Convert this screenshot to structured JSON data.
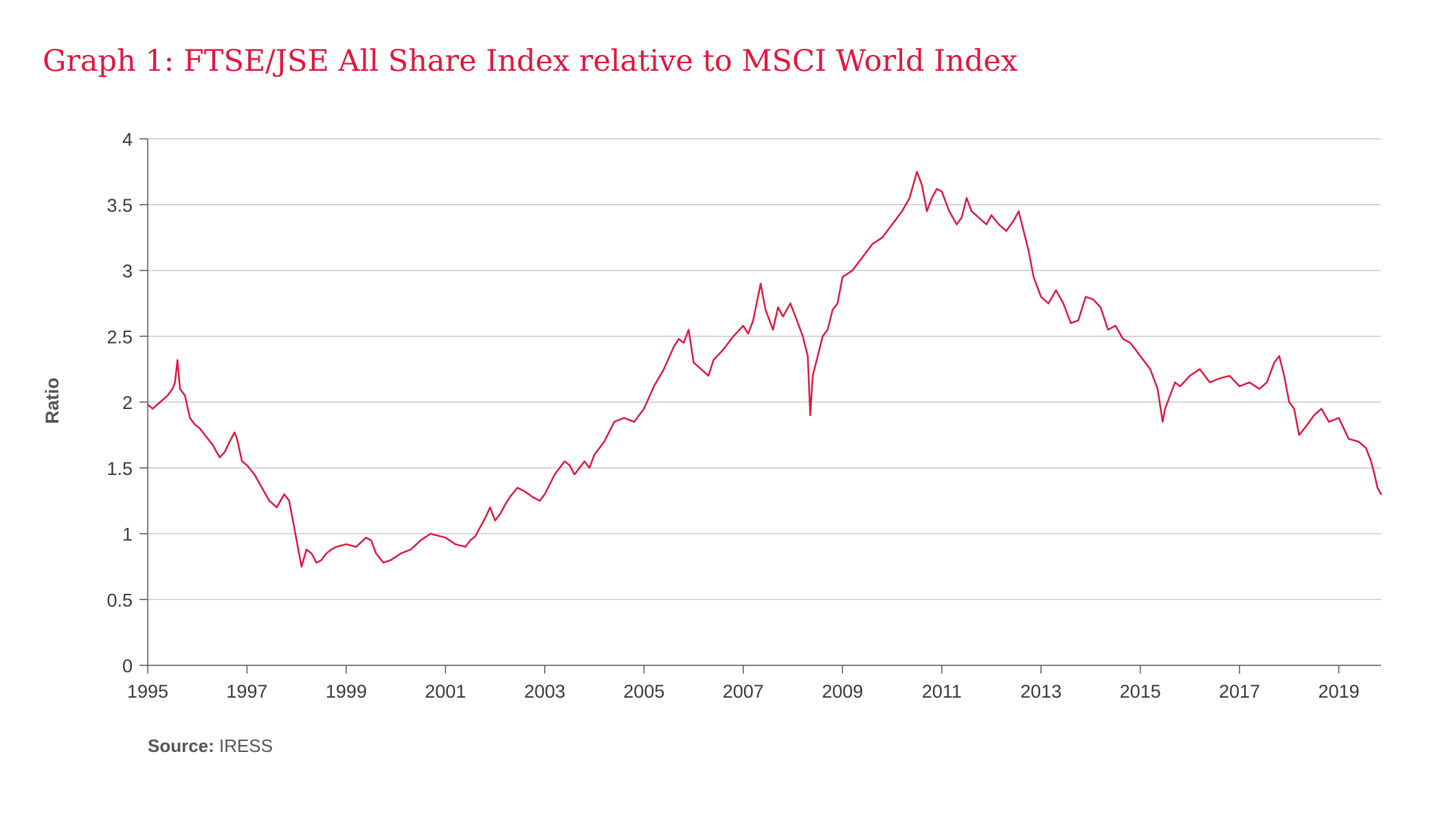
{
  "title": "Graph 1: FTSE/JSE All Share Index relative to MSCI World Index",
  "source": {
    "label": "Source:",
    "value": "IRESS"
  },
  "colors": {
    "title": "#e0173d",
    "series": "#e0173d",
    "grid": "#c8c8c8",
    "axis": "#555555",
    "text": "#3a3a3a"
  },
  "chart_data": {
    "type": "line",
    "title": "Graph 1: FTSE/JSE All Share Index relative to MSCI World Index",
    "xlabel": "",
    "ylabel": "Ratio",
    "xlim": [
      1995.0,
      2019.85
    ],
    "ylim": [
      0,
      4
    ],
    "grid": true,
    "legend": "none",
    "x_ticks": [
      "1995",
      "1997",
      "1999",
      "2001",
      "2003",
      "2005",
      "2007",
      "2009",
      "2011",
      "2013",
      "2015",
      "2017",
      "2019"
    ],
    "y_ticks": [
      "0",
      "0.5",
      "1",
      "1.5",
      "2",
      "2.5",
      "3",
      "3.5",
      "4"
    ],
    "series": [
      {
        "x": [
          1995.0,
          1995.1,
          1995.25,
          1995.4,
          1995.5,
          1995.55,
          1995.6,
          1995.65,
          1995.75,
          1995.85,
          1995.95,
          1996.05,
          1996.15,
          1996.3,
          1996.45,
          1996.55,
          1996.65,
          1996.75,
          1996.8,
          1996.9,
          1997.0,
          1997.15,
          1997.3,
          1997.45,
          1997.6,
          1997.75,
          1997.85,
          1998.0,
          1998.1,
          1998.2,
          1998.3,
          1998.4,
          1998.5,
          1998.6,
          1998.7,
          1998.8,
          1999.0,
          1999.2,
          1999.4,
          1999.5,
          1999.6,
          1999.75,
          1999.9,
          2000.1,
          2000.3,
          2000.5,
          2000.7,
          2000.9,
          2001.0,
          2001.2,
          2001.4,
          2001.5,
          2001.6,
          2001.8,
          2001.9,
          2002.0,
          2002.1,
          2002.2,
          2002.3,
          2002.45,
          2002.6,
          2002.75,
          2002.9,
          2003.0,
          2003.2,
          2003.4,
          2003.5,
          2003.6,
          2003.8,
          2003.9,
          2004.0,
          2004.2,
          2004.4,
          2004.6,
          2004.8,
          2005.0,
          2005.2,
          2005.4,
          2005.6,
          2005.7,
          2005.8,
          2005.9,
          2006.0,
          2006.15,
          2006.3,
          2006.4,
          2006.6,
          2006.8,
          2007.0,
          2007.1,
          2007.2,
          2007.35,
          2007.45,
          2007.6,
          2007.7,
          2007.8,
          2007.95,
          2008.1,
          2008.2,
          2008.3,
          2008.35,
          2008.4,
          2008.5,
          2008.6,
          2008.7,
          2008.8,
          2008.9,
          2009.0,
          2009.2,
          2009.4,
          2009.6,
          2009.8,
          2010.0,
          2010.2,
          2010.35,
          2010.5,
          2010.6,
          2010.7,
          2010.8,
          2010.9,
          2011.0,
          2011.15,
          2011.3,
          2011.4,
          2011.5,
          2011.6,
          2011.75,
          2011.9,
          2012.0,
          2012.15,
          2012.3,
          2012.45,
          2012.55,
          2012.65,
          2012.75,
          2012.85,
          2013.0,
          2013.15,
          2013.3,
          2013.45,
          2013.6,
          2013.75,
          2013.9,
          2014.05,
          2014.2,
          2014.35,
          2014.5,
          2014.65,
          2014.8,
          2015.0,
          2015.2,
          2015.35,
          2015.45,
          2015.5,
          2015.6,
          2015.7,
          2015.8,
          2016.0,
          2016.2,
          2016.4,
          2016.6,
          2016.8,
          2017.0,
          2017.2,
          2017.4,
          2017.55,
          2017.7,
          2017.8,
          2017.9,
          2018.0,
          2018.1,
          2018.2,
          2018.35,
          2018.5,
          2018.65,
          2018.8,
          2019.0,
          2019.2,
          2019.4,
          2019.55,
          2019.65,
          2019.72,
          2019.78,
          2019.85
        ],
        "y": [
          1.98,
          1.95,
          2.0,
          2.05,
          2.1,
          2.15,
          2.32,
          2.1,
          2.05,
          1.88,
          1.83,
          1.8,
          1.75,
          1.68,
          1.58,
          1.62,
          1.7,
          1.77,
          1.72,
          1.55,
          1.52,
          1.45,
          1.35,
          1.25,
          1.2,
          1.3,
          1.25,
          0.95,
          0.75,
          0.88,
          0.85,
          0.78,
          0.8,
          0.85,
          0.88,
          0.9,
          0.92,
          0.9,
          0.97,
          0.95,
          0.85,
          0.78,
          0.8,
          0.85,
          0.88,
          0.95,
          1.0,
          0.98,
          0.97,
          0.92,
          0.9,
          0.95,
          0.98,
          1.12,
          1.2,
          1.1,
          1.15,
          1.22,
          1.28,
          1.35,
          1.32,
          1.28,
          1.25,
          1.3,
          1.45,
          1.55,
          1.52,
          1.45,
          1.55,
          1.5,
          1.6,
          1.7,
          1.85,
          1.88,
          1.85,
          1.95,
          2.12,
          2.25,
          2.42,
          2.48,
          2.45,
          2.55,
          2.3,
          2.25,
          2.2,
          2.32,
          2.4,
          2.5,
          2.58,
          2.52,
          2.62,
          2.9,
          2.7,
          2.55,
          2.72,
          2.65,
          2.75,
          2.6,
          2.5,
          2.35,
          1.9,
          2.2,
          2.35,
          2.5,
          2.55,
          2.7,
          2.75,
          2.95,
          3.0,
          3.1,
          3.2,
          3.25,
          3.35,
          3.45,
          3.55,
          3.75,
          3.65,
          3.45,
          3.55,
          3.62,
          3.6,
          3.45,
          3.35,
          3.4,
          3.55,
          3.45,
          3.4,
          3.35,
          3.42,
          3.35,
          3.3,
          3.38,
          3.45,
          3.3,
          3.15,
          2.95,
          2.8,
          2.75,
          2.85,
          2.75,
          2.6,
          2.62,
          2.8,
          2.78,
          2.72,
          2.55,
          2.58,
          2.48,
          2.45,
          2.35,
          2.25,
          2.1,
          1.85,
          1.95,
          2.05,
          2.15,
          2.12,
          2.2,
          2.25,
          2.15,
          2.18,
          2.2,
          2.12,
          2.15,
          2.1,
          2.15,
          2.3,
          2.35,
          2.2,
          2.0,
          1.95,
          1.75,
          1.82,
          1.9,
          1.95,
          1.85,
          1.88,
          1.72,
          1.7,
          1.65,
          1.55,
          1.45,
          1.35,
          1.3
        ]
      }
    ]
  }
}
